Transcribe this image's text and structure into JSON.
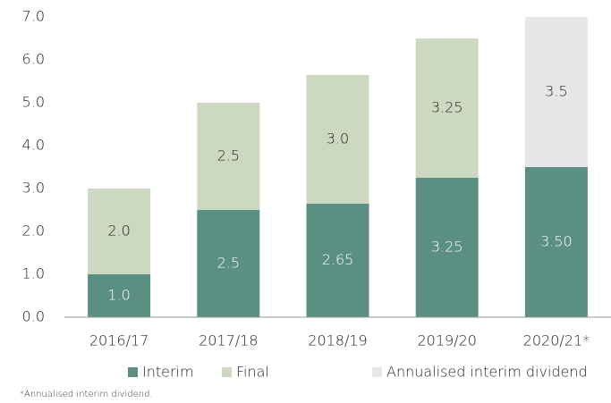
{
  "chart_data": {
    "type": "stacked_bar",
    "categories": [
      "2016/17",
      "2017/18",
      "2018/19",
      "2019/20",
      "2020/21*"
    ],
    "series": [
      {
        "name": "Interim",
        "color": "#5b8f81",
        "values": [
          1.0,
          2.5,
          2.65,
          3.25,
          3.5
        ],
        "value_labels": [
          "1.0",
          "2.5",
          "2.65",
          "3.25",
          "3.50"
        ],
        "label_color": "#ffffff"
      },
      {
        "name": "Final",
        "color": "#ccd9c0",
        "values": [
          2.0,
          2.5,
          3.0,
          3.25,
          null
        ],
        "value_labels": [
          "2.0",
          "2.5",
          "3.0",
          "3.25",
          null
        ],
        "label_color": "#222222"
      },
      {
        "name": "Annualised interim dividend",
        "color": "#e6e7e9",
        "values": [
          null,
          null,
          null,
          null,
          3.5
        ],
        "value_labels": [
          null,
          null,
          null,
          null,
          "3.5"
        ],
        "label_color": "#222222"
      }
    ],
    "ylim": [
      0,
      7
    ],
    "yticks": [
      {
        "value": 0,
        "label": "0.0"
      },
      {
        "value": 1,
        "label": "1.0"
      },
      {
        "value": 2,
        "label": "2.0"
      },
      {
        "value": 3,
        "label": "3.0"
      },
      {
        "value": 4,
        "label": "4.0"
      },
      {
        "value": 5,
        "label": "5.0"
      },
      {
        "value": 6,
        "label": "6.0"
      },
      {
        "value": 7,
        "label": "7.0"
      }
    ],
    "grid": false,
    "legend": "bottom",
    "footnote": "*Annualised interim dividend."
  }
}
